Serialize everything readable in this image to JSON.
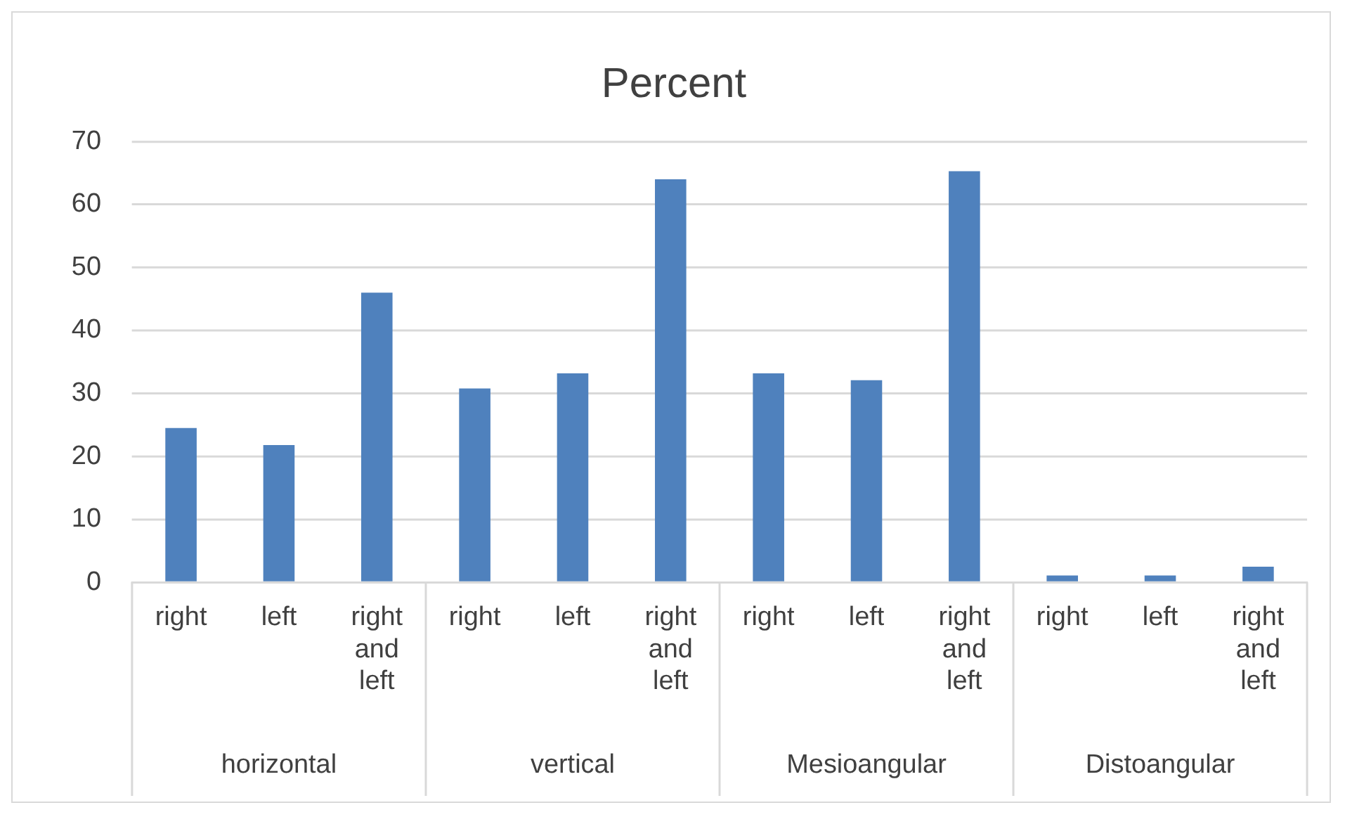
{
  "chart_data": {
    "type": "bar",
    "title": "Percent",
    "categories": [
      "right",
      "left",
      "right and left",
      "right",
      "left",
      "right and left",
      "right",
      "left",
      "right and left",
      "right",
      "left",
      "right and left"
    ],
    "values": [
      24.5,
      21.8,
      46.0,
      30.8,
      33.2,
      64.0,
      33.2,
      32.1,
      65.3,
      1.1,
      1.1,
      2.5
    ],
    "color": "#4f81bd",
    "ylim": [
      0,
      70
    ],
    "yticks": [
      0,
      10,
      20,
      30,
      40,
      50,
      60,
      70
    ],
    "grid": "y",
    "annotations": [
      "horizontal",
      "vertical",
      "Mesioangular",
      "Distoangular"
    ]
  }
}
